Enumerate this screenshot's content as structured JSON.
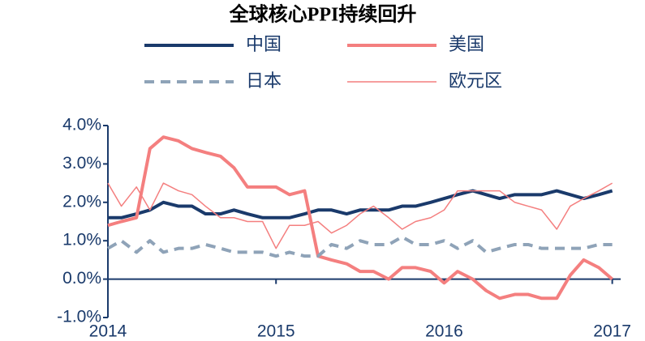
{
  "chart_data": {
    "type": "line",
    "title": "全球核心PPI持续回升",
    "x": [
      2014.0,
      2014.08,
      2014.17,
      2014.25,
      2014.33,
      2014.42,
      2014.5,
      2014.58,
      2014.67,
      2014.75,
      2014.83,
      2014.92,
      2015.0,
      2015.08,
      2015.17,
      2015.25,
      2015.33,
      2015.42,
      2015.5,
      2015.58,
      2015.67,
      2015.75,
      2015.83,
      2015.92,
      2016.0,
      2016.08,
      2016.17,
      2016.25,
      2016.33,
      2016.42,
      2016.5,
      2016.58,
      2016.67,
      2016.75,
      2016.83,
      2016.92,
      2017.0
    ],
    "series": [
      {
        "name": "中国",
        "color": "#1a3a6b",
        "line_width": 4,
        "line_style": "solid",
        "values": [
          1.6,
          1.6,
          1.7,
          1.8,
          2.0,
          1.9,
          1.9,
          1.7,
          1.7,
          1.8,
          1.7,
          1.6,
          1.6,
          1.6,
          1.7,
          1.8,
          1.8,
          1.7,
          1.8,
          1.8,
          1.8,
          1.9,
          1.9,
          2.0,
          2.1,
          2.2,
          2.3,
          2.2,
          2.1,
          2.2,
          2.2,
          2.2,
          2.3,
          2.2,
          2.1,
          2.2,
          2.3
        ]
      },
      {
        "name": "美国",
        "color": "#f47f7f",
        "line_width": 4,
        "line_style": "solid",
        "values": [
          1.4,
          1.5,
          1.6,
          3.4,
          3.7,
          3.6,
          3.4,
          3.3,
          3.2,
          2.9,
          2.4,
          2.4,
          2.4,
          2.2,
          2.3,
          0.6,
          0.5,
          0.4,
          0.2,
          0.2,
          0.0,
          0.3,
          0.3,
          0.2,
          -0.1,
          0.2,
          0.0,
          -0.3,
          -0.5,
          -0.4,
          -0.4,
          -0.5,
          -0.5,
          0.1,
          0.5,
          0.3,
          0.0
        ]
      },
      {
        "name": "日本",
        "color": "#8fa3b8",
        "line_width": 4,
        "line_style": "dashed",
        "values": [
          0.8,
          1.0,
          0.7,
          1.0,
          0.7,
          0.8,
          0.8,
          0.9,
          0.8,
          0.7,
          0.7,
          0.7,
          0.6,
          0.7,
          0.6,
          0.6,
          0.9,
          0.8,
          1.0,
          0.9,
          0.9,
          1.1,
          0.9,
          0.9,
          1.0,
          0.8,
          1.0,
          0.7,
          0.8,
          0.9,
          0.9,
          0.8,
          0.8,
          0.8,
          0.8,
          0.9,
          0.9
        ]
      },
      {
        "name": "欧元区",
        "color": "#f47f7f",
        "line_width": 1.5,
        "line_style": "solid",
        "values": [
          2.5,
          1.9,
          2.4,
          1.8,
          2.5,
          2.3,
          2.2,
          1.9,
          1.6,
          1.6,
          1.5,
          1.5,
          0.8,
          1.4,
          1.4,
          1.5,
          1.2,
          1.4,
          1.7,
          1.9,
          1.6,
          1.3,
          1.5,
          1.6,
          1.8,
          2.3,
          2.3,
          2.3,
          2.3,
          2.0,
          1.9,
          1.8,
          1.3,
          1.9,
          2.1,
          2.3,
          2.5
        ]
      }
    ],
    "xlim": [
      2014,
      2017.05
    ],
    "xticks": [
      2014,
      2015,
      2016,
      2017
    ],
    "ylim": [
      -1,
      4
    ],
    "yticks": [
      {
        "value": -1,
        "label": "-1.0%"
      },
      {
        "value": 0,
        "label": "0.0%"
      },
      {
        "value": 1,
        "label": "1.0%"
      },
      {
        "value": 2,
        "label": "2.0%"
      },
      {
        "value": 3,
        "label": "3.0%"
      },
      {
        "value": 4,
        "label": "4.0%"
      }
    ],
    "grid": false
  }
}
